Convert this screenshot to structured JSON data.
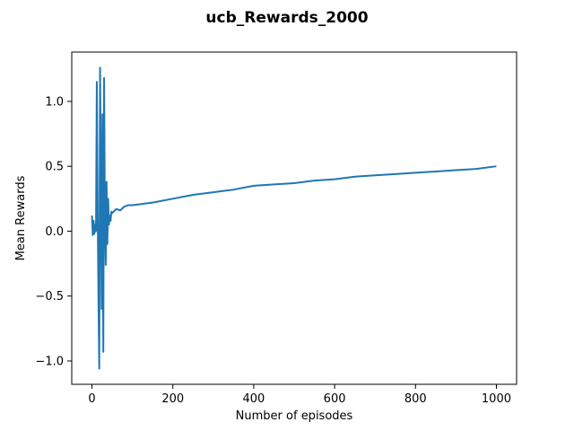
{
  "chart_data": {
    "type": "line",
    "title": "ucb_Rewards_2000",
    "xlabel": "Number of episodes",
    "ylabel": "Mean Rewards",
    "xlim": [
      -50,
      1050
    ],
    "ylim": [
      -1.18,
      1.38
    ],
    "xticks": [
      0,
      200,
      400,
      600,
      800,
      1000
    ],
    "yticks": [
      -1.0,
      -0.5,
      0.0,
      0.5,
      1.0
    ],
    "ytick_labels": [
      "−1.0",
      "−0.5",
      "0.0",
      "0.5",
      "1.0"
    ],
    "grid": false,
    "series_color": "#1f77b4",
    "series": [
      {
        "x": [
          0,
          2,
          4,
          6,
          8,
          10,
          12,
          14,
          16,
          18,
          20,
          22,
          24,
          26,
          28,
          30,
          32,
          34,
          36,
          38,
          40,
          42,
          44,
          46,
          48,
          50,
          60,
          70,
          80,
          90,
          100,
          150,
          200,
          250,
          300,
          350,
          400,
          450,
          500,
          550,
          600,
          650,
          700,
          750,
          800,
          850,
          900,
          950,
          1000
        ],
        "y": [
          0.12,
          -0.03,
          0.08,
          -0.02,
          0.05,
          0.0,
          1.15,
          0.2,
          -0.5,
          -1.06,
          1.26,
          0.4,
          -0.6,
          0.9,
          -0.93,
          1.18,
          0.1,
          -0.26,
          0.38,
          -0.1,
          0.25,
          0.05,
          0.12,
          0.08,
          0.15,
          0.14,
          0.17,
          0.16,
          0.19,
          0.2,
          0.2,
          0.22,
          0.25,
          0.28,
          0.3,
          0.32,
          0.35,
          0.36,
          0.37,
          0.39,
          0.4,
          0.42,
          0.43,
          0.44,
          0.45,
          0.46,
          0.47,
          0.48,
          0.5
        ]
      }
    ]
  }
}
